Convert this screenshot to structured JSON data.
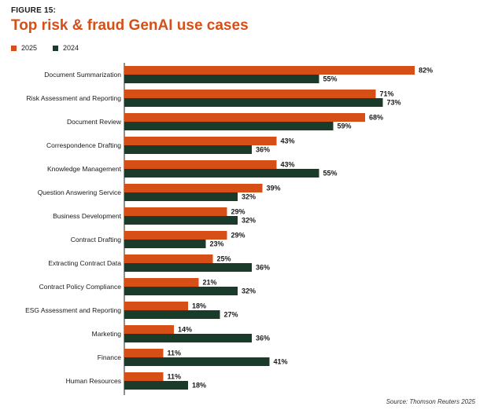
{
  "figure_label": "FIGURE 15:",
  "title": "Top risk & fraud GenAI use cases",
  "source": "Source: Thomson Reuters 2025",
  "colors": {
    "s2025": "#d64f17",
    "s2024": "#1b3b2a"
  },
  "chart_data": {
    "type": "bar",
    "orientation": "horizontal",
    "title": "Top risk & fraud GenAI use cases",
    "categories": [
      "Document Summarization",
      "Risk Assessment and Reporting",
      "Document Review",
      "Correspondence Drafting",
      "Knowledge Management",
      "Question Answering Service",
      "Business Development",
      "Contract Drafting",
      "Extracting Contract Data",
      "Contract Policy Compliance",
      "ESG Assessment and Reporting",
      "Marketing",
      "Finance",
      "Human Resources"
    ],
    "series": [
      {
        "name": "2025",
        "values": [
          82,
          71,
          68,
          43,
          43,
          39,
          29,
          29,
          25,
          21,
          18,
          14,
          11,
          11
        ]
      },
      {
        "name": "2024",
        "values": [
          55,
          73,
          59,
          36,
          55,
          32,
          32,
          23,
          36,
          32,
          27,
          36,
          41,
          18
        ]
      }
    ],
    "value_suffix": "%",
    "xlim": [
      0,
      100
    ],
    "grid": false,
    "legend_position": "top-left"
  }
}
